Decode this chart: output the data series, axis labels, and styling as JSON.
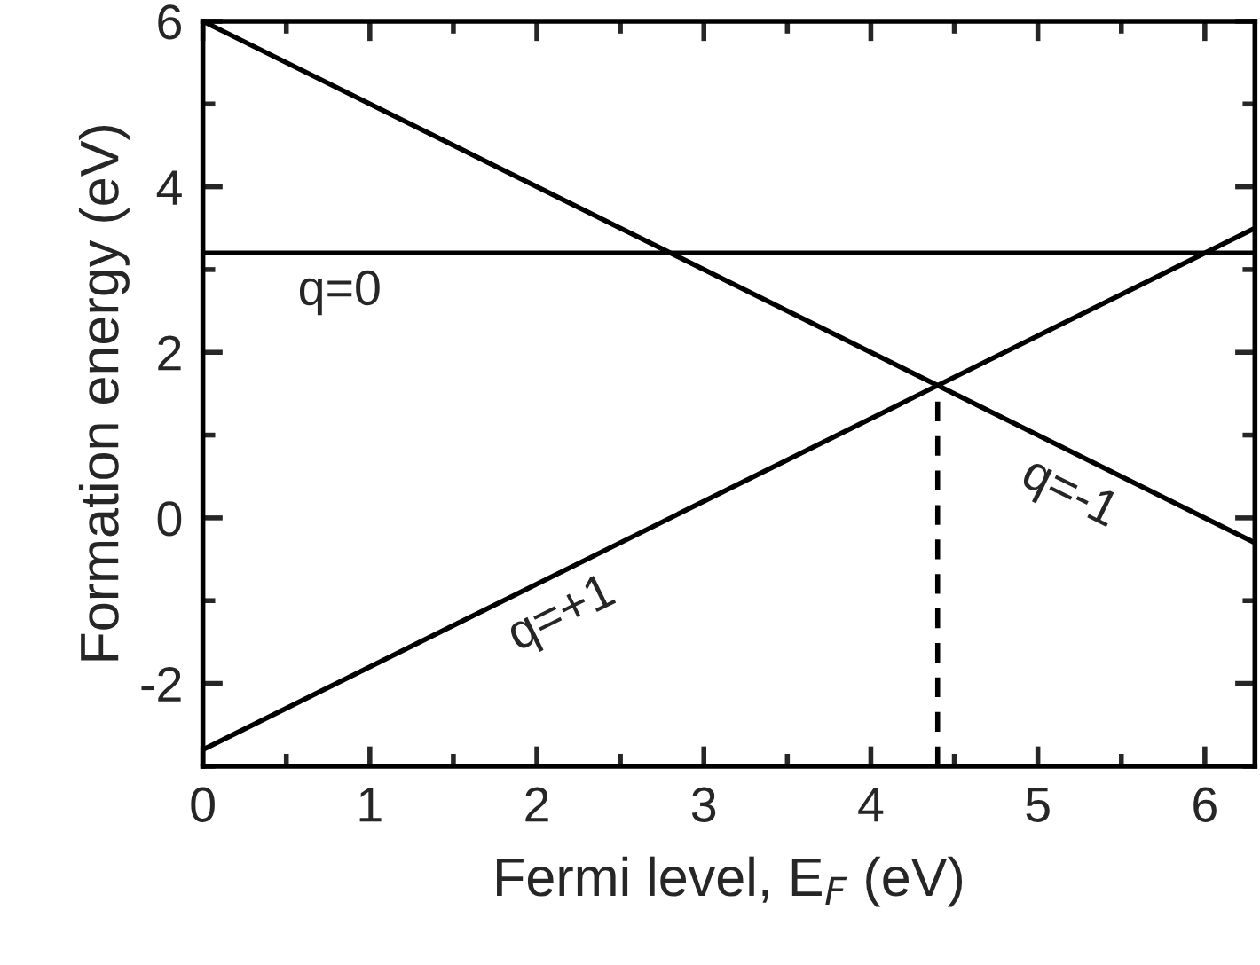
{
  "chart_data": {
    "type": "line",
    "xlabel": "Fermi level, E$_{F}$ (eV)",
    "ylabel": "Formation energy (eV)",
    "xlim": [
      0,
      6.3
    ],
    "ylim": [
      -3,
      6
    ],
    "xticks": [
      0,
      1,
      2,
      3,
      4,
      5,
      6
    ],
    "yticks": [
      {
        "value": -2,
        "label": "-2"
      },
      0,
      2,
      4,
      6
    ],
    "grid": false,
    "legend": false,
    "marker": "none",
    "series": [
      {
        "name": "q=+1",
        "color": "#000000",
        "x": [
          0,
          6.3
        ],
        "values": [
          -2.8,
          3.5
        ]
      },
      {
        "name": "q=0",
        "color": "#000000",
        "x": [
          0,
          6.3
        ],
        "values": [
          3.2,
          3.2
        ]
      },
      {
        "name": "q=-1",
        "color": "#000000",
        "x": [
          0,
          6.3
        ],
        "values": [
          6,
          -0.3
        ]
      },
      {
        "color": "#000000",
        "x": [
          4.4,
          4.4
        ],
        "values": [
          -3,
          1.6
        ],
        "line_style": "dashed"
      }
    ]
  }
}
